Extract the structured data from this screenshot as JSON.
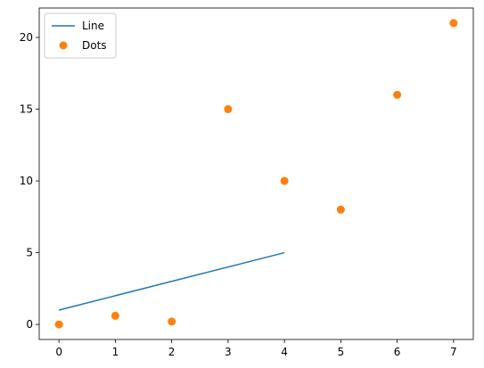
{
  "chart_data": {
    "type": "line",
    "title": "",
    "xlabel": "",
    "ylabel": "",
    "xlim": [
      -0.35,
      7.35
    ],
    "ylim": [
      -1.05,
      22.05
    ],
    "grid": false,
    "legend_placement": "top-left",
    "x_ticks": [
      0,
      1,
      2,
      3,
      4,
      5,
      6,
      7
    ],
    "y_ticks": [
      0,
      5,
      10,
      15,
      20
    ],
    "x_tick_labels": [
      "0",
      "1",
      "2",
      "3",
      "4",
      "5",
      "6",
      "7"
    ],
    "y_tick_labels": [
      "0",
      "5",
      "10",
      "15",
      "20"
    ],
    "series": [
      {
        "name": "Line",
        "kind": "line",
        "color": "#1f77b4",
        "x": [
          0,
          1,
          2,
          3,
          4
        ],
        "y": [
          1,
          2,
          3,
          4,
          5
        ]
      },
      {
        "name": "Dots",
        "kind": "scatter",
        "color": "#ff7f0e",
        "x": [
          0,
          1,
          2,
          3,
          4,
          5,
          6,
          7
        ],
        "y": [
          0,
          0.6,
          0.2,
          15,
          10,
          8,
          16,
          21
        ]
      }
    ]
  }
}
